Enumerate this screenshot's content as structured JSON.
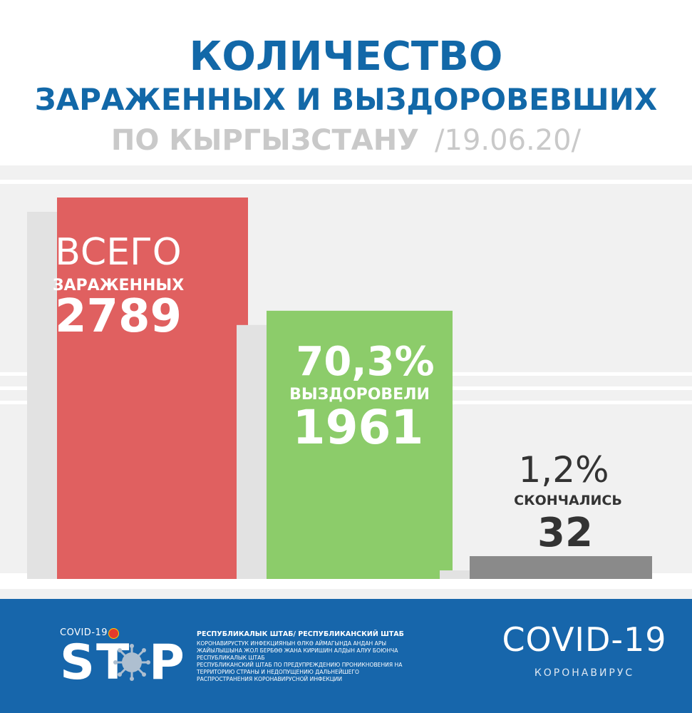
{
  "title": {
    "line1": "КОЛИЧЕСТВО",
    "line2": "ЗАРАЖЕННЫХ И ВЫЗДОРОВЕВШИХ",
    "line3": "ПО КЫРГЫЗСТАНУ",
    "date": "/19.06.20/"
  },
  "chart_data": {
    "type": "bar",
    "categories": [
      "ВСЕГО ЗАРАЖЕННЫХ",
      "ВЫЗДОРОВЕЛИ",
      "СКОНЧАЛИСЬ"
    ],
    "values": [
      2789,
      1961,
      32
    ],
    "bars": [
      {
        "headline": "ВСЕГО",
        "label": "ЗАРАЖЕННЫХ",
        "value": "2789",
        "color": "#e06060",
        "text_color": "#ffffff"
      },
      {
        "headline": "70,3%",
        "label": "ВЫЗДОРОВЕЛИ",
        "value": "1961",
        "color": "#8ccc6a",
        "text_color": "#ffffff"
      },
      {
        "headline": "1,2%",
        "label": "СКОНЧАЛИСЬ",
        "value": "32",
        "color": "#8a8a8a",
        "text_color": "#333333"
      }
    ],
    "grid": false,
    "legend": "none"
  },
  "footer": {
    "covid_small": "COVID-19",
    "stop": "ST P",
    "staff_title": "РЕСПУБЛИКАЛЫК ШТАБ/ РЕСПУБЛИКАНСКИЙ ШТАБ",
    "staff_kg": "КОРОНАВИРУСТУК ИНФЕКЦИЯНЫН ӨЛКӨ АЙМАГЫНДА АНДАН АРЫ ЖАЙЫЛЫШЫНА ЖОЛ БЕРБӨӨ ЖАНА КИРИШИН АЛДЫН АЛУУ БОЮНЧА РЕСПУБЛИКАЛЫК ШТАБ",
    "staff_ru": "РЕСПУБЛИКАНСКИЙ ШТАБ ПО ПРЕДУПРЕЖДЕНИЮ ПРОНИКНОВЕНИЯ НА ТЕРРИТОРИЮ СТРАНЫ И НЕДОПУЩЕНИЮ ДАЛЬНЕЙШЕГО РАСПРОСТРАНЕНИЯ КОРОНАВИРУСНОЙ ИНФЕКЦИИ",
    "covid_big": "COVID-19",
    "corona": "КОРОНАВИРУС"
  },
  "colors": {
    "title_blue": "#1268a8",
    "subtitle_grey": "#c9c9c9",
    "footer_blue": "#1766ab"
  }
}
